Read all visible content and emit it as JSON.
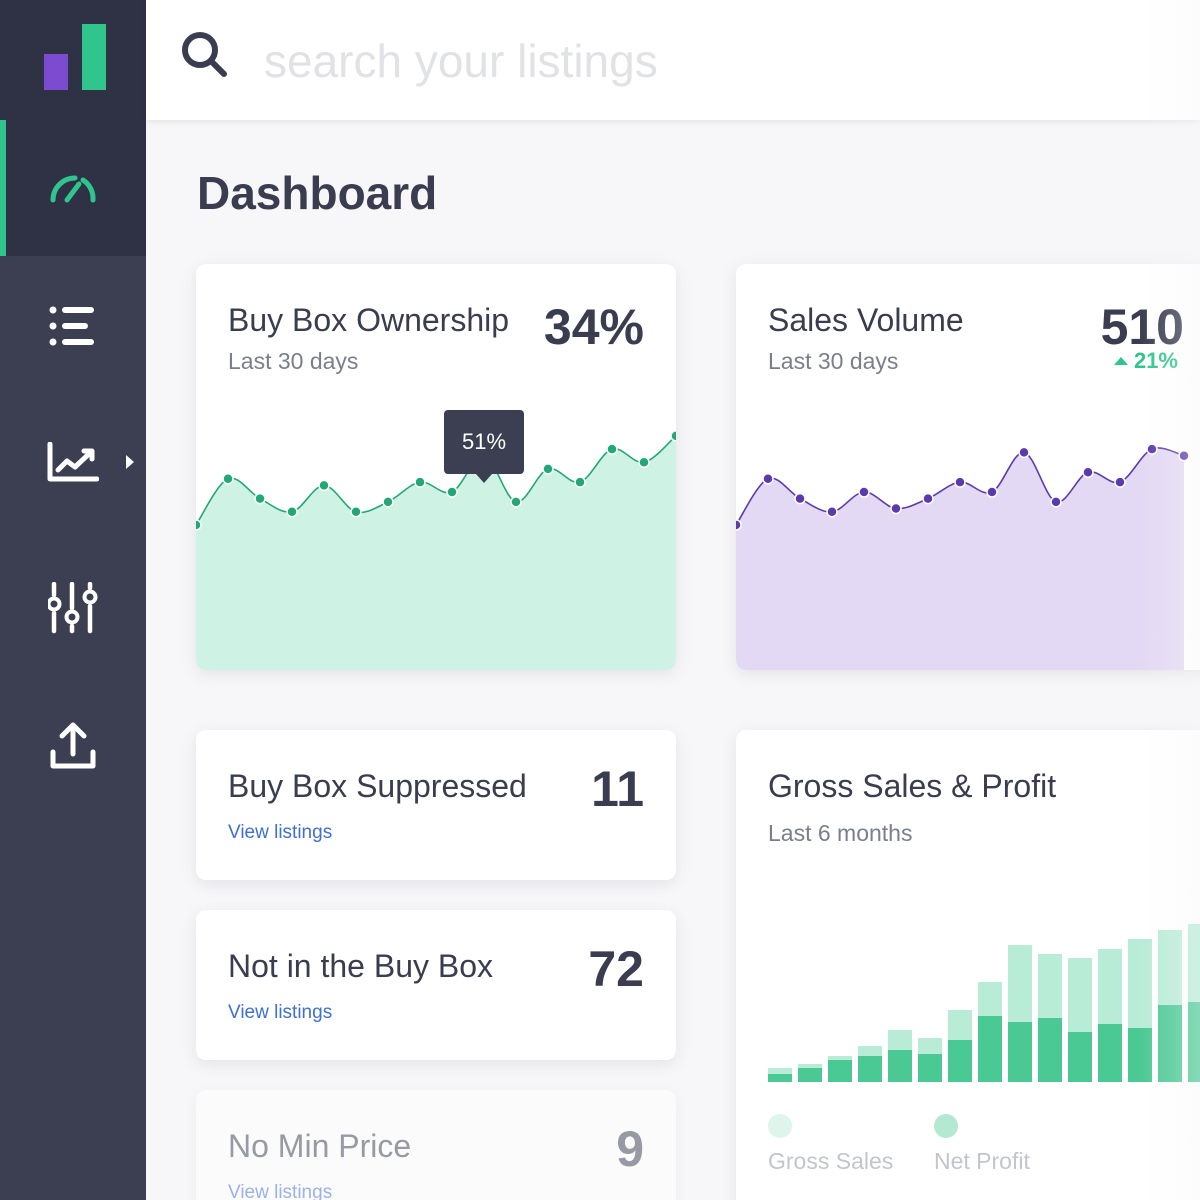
{
  "app": {
    "accent_color": "#2fc58d",
    "purple_color": "#6f48b8",
    "sidebar_color": "#3c3f52"
  },
  "sidebar": {
    "logo_icon": "bar-chart-logo",
    "items": [
      {
        "name": "dashboard",
        "icon": "speedometer-icon",
        "active": true
      },
      {
        "name": "listings",
        "icon": "list-icon",
        "active": false
      },
      {
        "name": "analytics",
        "icon": "trending-chart-icon",
        "active": false,
        "has_submenu": true
      },
      {
        "name": "settings",
        "icon": "sliders-icon",
        "active": false
      },
      {
        "name": "upload",
        "icon": "upload-icon",
        "active": false
      }
    ]
  },
  "search": {
    "placeholder": "search your listings",
    "value": ""
  },
  "page": {
    "title": "Dashboard"
  },
  "cards": {
    "buy_box_ownership": {
      "title": "Buy Box Ownership",
      "subtitle": "Last 30 days",
      "value": "34%",
      "tooltip": "51%"
    },
    "sales_volume": {
      "title": "Sales Volume",
      "subtitle": "Last 30 days",
      "value": "510",
      "trend": "21%",
      "trend_direction": "up"
    },
    "buy_box_suppressed": {
      "title": "Buy Box Suppressed",
      "value": "11",
      "link": "View listings"
    },
    "not_in_buy_box": {
      "title": "Not in the Buy Box",
      "value": "72",
      "link": "View listings"
    },
    "no_min_price": {
      "title": "No Min Price",
      "value": "9",
      "link": "View listings"
    },
    "gross_sales_profit": {
      "title": "Gross Sales & Profit",
      "subtitle": "Last 6 months",
      "legend": [
        "Gross Sales",
        "Net Profit"
      ]
    }
  },
  "chart_data": [
    {
      "type": "area",
      "name": "buy-box-ownership",
      "color": "#22a776",
      "fill": "#cef2e4",
      "x": [
        1,
        2,
        3,
        4,
        5,
        6,
        7,
        8,
        9,
        10,
        11,
        12,
        13,
        14,
        15,
        16
      ],
      "values": [
        30,
        44,
        38,
        34,
        42,
        34,
        37,
        43,
        40,
        51,
        37,
        47,
        43,
        53,
        49,
        57
      ],
      "highlight_index": 9,
      "ylim": [
        0,
        90
      ]
    },
    {
      "type": "area",
      "name": "sales-volume",
      "color": "#5b3bab",
      "fill": "#e3d9f4",
      "x": [
        1,
        2,
        3,
        4,
        5,
        6,
        7,
        8,
        9,
        10,
        11,
        12,
        13,
        14,
        15
      ],
      "values": [
        30,
        44,
        38,
        34,
        40,
        35,
        38,
        43,
        40,
        52,
        37,
        46,
        43,
        53,
        51
      ],
      "ylim": [
        0,
        90
      ]
    },
    {
      "type": "bar",
      "name": "gross-sales-profit",
      "series": [
        {
          "name": "Gross Sales",
          "color": "#b9ecd7",
          "values": [
            14,
            18,
            26,
            36,
            52,
            44,
            72,
            100,
            137,
            128,
            124,
            133,
            143,
            152,
            158
          ]
        },
        {
          "name": "Net Profit",
          "color": "#4bc994",
          "values": [
            8,
            14,
            22,
            26,
            32,
            28,
            42,
            66,
            60,
            64,
            50,
            58,
            54,
            77,
            80
          ]
        }
      ],
      "ylim": [
        0,
        160
      ]
    }
  ]
}
